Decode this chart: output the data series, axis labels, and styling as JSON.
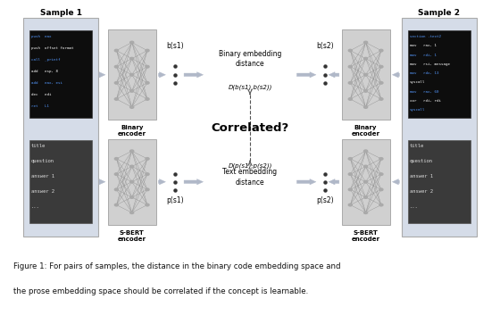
{
  "bg_color": "#ffffff",
  "sample1_label": "Sample 1",
  "sample2_label": "Sample 2",
  "sample_box_color": "#d5dce8",
  "encoder_box_color": "#d0d0d0",
  "binary_code_color": "#0d0d0d",
  "prose_color": "#3a3a3a",
  "arrow_color": "#b0b8c8",
  "dot_color": "#333333",
  "binary_embed_label": "Binary embedding\ndistance",
  "text_embed_label": "Text embedding\ndistance",
  "db_label": "D(b(s1),b(s2))",
  "dp_label": "D(p(s1),p(s2))",
  "correlated_label": "Correlated?",
  "bs1_label": "b(s1)",
  "bs2_label": "b(s2)",
  "ps1_label": "p(s1)",
  "ps2_label": "p(s2)",
  "binary_enc_label": "Binary\nencoder",
  "sbert_enc_label": "S-BERT\nencoder",
  "caption_line1": "Figure 1: For pairs of samples, the distance in the binary code embedding space and",
  "caption_line2": "the prose embedding space should be correlated if the concept is learnable.",
  "code1_lines": [
    "push  eax",
    "push  offset format",
    "call  _printf",
    "add   esp, 8",
    "add   eax, esi",
    "dec   edi",
    "ret   L1"
  ],
  "code2_lines": [
    "section .text2",
    "mov   rax, 1",
    "mov   rdi, 1",
    "mov   rsi, message",
    "mov   rdx, 13",
    "syscall",
    "mov   rax, 60",
    "xor   rdi, rdi",
    "syscall"
  ],
  "prose_lines": [
    "title",
    "question",
    "answer 1",
    "answer 2",
    "..."
  ]
}
